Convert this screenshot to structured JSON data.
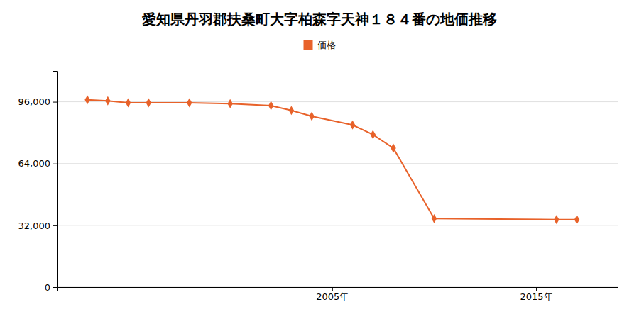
{
  "chart_data": {
    "type": "line",
    "title": "愛知県丹羽郡扶桑町大字柏森字天神１８４番の地価推移",
    "x": [
      1993,
      1994,
      1995,
      1996,
      1998,
      2000,
      2002,
      2003,
      2004,
      2006,
      2007,
      2008,
      2010,
      2016,
      2017
    ],
    "series": [
      {
        "name": "価格",
        "color": "#e8622a",
        "marker": "diamond",
        "values": [
          97000,
          96500,
          95500,
          95500,
          95500,
          95000,
          94000,
          91500,
          88500,
          84000,
          79000,
          72000,
          35500,
          35000,
          35000
        ]
      }
    ],
    "xlim": [
      1991.5,
      2019
    ],
    "xticks": [
      {
        "value": 2005,
        "label": "2005年"
      },
      {
        "value": 2015,
        "label": "2015年"
      }
    ],
    "ylim": [
      0,
      112000
    ],
    "yticks": [
      0,
      {
        "value": 32000,
        "label": "32,000"
      },
      {
        "value": 64000,
        "label": "64,000"
      },
      {
        "value": 96000,
        "label": "96,000"
      }
    ],
    "grid": "y",
    "legend": "top"
  }
}
